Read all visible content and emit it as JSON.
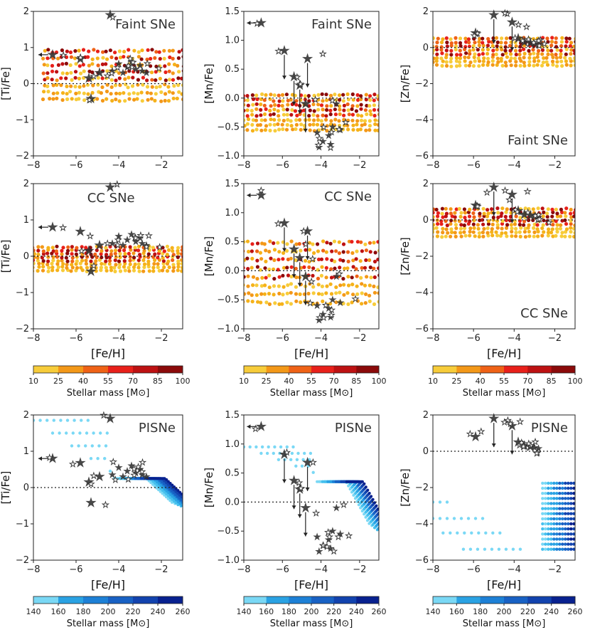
{
  "figure": {
    "rows": [
      "Faint SNe",
      "CC SNe",
      "PISNe"
    ]
  },
  "colors": {
    "warm": [
      "#f7cc3a",
      "#f5b21a",
      "#f39818",
      "#ef6216",
      "#e8201a",
      "#bd1112",
      "#8b0a0a"
    ],
    "cool": [
      "#7ad8f5",
      "#46c0ee",
      "#2aa2e3",
      "#1d80d6",
      "#1861c4",
      "#1243ae",
      "#08218f"
    ],
    "star": "#333333"
  },
  "colorbars": {
    "label": "Stellar mass [M⊙]",
    "warm_ticks": [
      "10",
      "25",
      "40",
      "55",
      "70",
      "85",
      "100"
    ],
    "cool_ticks": [
      "140",
      "160",
      "180",
      "200",
      "220",
      "240",
      "260"
    ]
  },
  "chart_data": [
    {
      "id": "r0c0",
      "type": "scatter",
      "model": "Faint SNe",
      "element": "Ti",
      "ylabel": "[Ti/Fe]",
      "xlabel": "",
      "xlim": [
        -8,
        -1
      ],
      "ylim": [
        -2,
        2
      ],
      "xticks": [
        "−8",
        "−6",
        "−4",
        "−2"
      ],
      "yticks": [
        "−2",
        "−1",
        "0",
        "1",
        "2"
      ],
      "title_pos": "top-right",
      "model_range": {
        "x": [
          -7.5,
          -1
        ],
        "y": [
          -0.45,
          0.9
        ]
      }
    },
    {
      "id": "r0c1",
      "type": "scatter",
      "model": "Faint SNe",
      "element": "Mn",
      "ylabel": "[Mn/Fe]",
      "xlabel": "",
      "xlim": [
        -8,
        -1
      ],
      "ylim": [
        -1,
        1.5
      ],
      "xticks": [
        "−8",
        "−6",
        "−4",
        "−2"
      ],
      "yticks": [
        "−1.0",
        "−0.5",
        "0.0",
        "0.5",
        "1.0",
        "1.5"
      ],
      "title_pos": "top-right",
      "model_range": {
        "x": [
          -8,
          -1
        ],
        "y": [
          -0.55,
          0.05
        ]
      }
    },
    {
      "id": "r0c2",
      "type": "scatter",
      "model": "Faint SNe",
      "element": "Zn",
      "ylabel": "[Zn/Fe]",
      "xlabel": "",
      "xlim": [
        -8,
        -1
      ],
      "ylim": [
        -6,
        2
      ],
      "xticks": [
        "−8",
        "−6",
        "−4",
        "−2"
      ],
      "yticks": [
        "−6",
        "−4",
        "−2",
        "0",
        "2"
      ],
      "title_pos": "bottom-right",
      "model_range": {
        "x": [
          -8,
          -1
        ],
        "y": [
          -1.0,
          0.5
        ]
      }
    },
    {
      "id": "r1c0",
      "type": "scatter",
      "model": "CC SNe",
      "element": "Ti",
      "ylabel": "[Ti/Fe]",
      "xlabel": "[Fe/H]",
      "xlim": [
        -8,
        -1
      ],
      "ylim": [
        -2,
        2
      ],
      "xticks": [
        "−8",
        "−6",
        "−4",
        "−2"
      ],
      "yticks": [
        "−2",
        "−1",
        "0",
        "1",
        "2"
      ],
      "title_pos": "top-left",
      "model_range": {
        "x": [
          -8,
          -1
        ],
        "y": [
          -0.4,
          0.25
        ]
      }
    },
    {
      "id": "r1c1",
      "type": "scatter",
      "model": "CC SNe",
      "element": "Mn",
      "ylabel": "[Mn/Fe]",
      "xlabel": "[Fe/H]",
      "xlim": [
        -8,
        -1
      ],
      "ylim": [
        -1,
        1.5
      ],
      "xticks": [
        "−8",
        "−6",
        "−4",
        "−2"
      ],
      "yticks": [
        "−1.0",
        "−0.5",
        "0.0",
        "0.5",
        "1.0",
        "1.5"
      ],
      "title_pos": "top-right",
      "model_range": {
        "x": [
          -8,
          -1
        ],
        "y": [
          -0.55,
          0.48
        ]
      }
    },
    {
      "id": "r1c2",
      "type": "scatter",
      "model": "CC SNe",
      "element": "Zn",
      "ylabel": "[Zn/Fe]",
      "xlabel": "[Fe/H]",
      "xlim": [
        -8,
        -1
      ],
      "ylim": [
        -6,
        2
      ],
      "xticks": [
        "−8",
        "−6",
        "−4",
        "−2"
      ],
      "yticks": [
        "−6",
        "−4",
        "−2",
        "0",
        "2"
      ],
      "title_pos": "bottom-right",
      "model_range": {
        "x": [
          -8,
          -1
        ],
        "y": [
          -0.9,
          0.6
        ]
      }
    },
    {
      "id": "r2c0",
      "type": "scatter",
      "model": "PISNe",
      "element": "Ti",
      "ylabel": "[Ti/Fe]",
      "xlabel": "[Fe/H]",
      "xlim": [
        -8,
        -1
      ],
      "ylim": [
        -2,
        2
      ],
      "xticks": [
        "−8",
        "−6",
        "−4",
        "−2"
      ],
      "yticks": [
        "−2",
        "−1",
        "0",
        "1",
        "2"
      ],
      "title_pos": "top-right",
      "model_range": {
        "x": [
          -8,
          -1
        ],
        "y": [
          -0.7,
          1.85
        ]
      }
    },
    {
      "id": "r2c1",
      "type": "scatter",
      "model": "PISNe",
      "element": "Mn",
      "ylabel": "[Mn/Fe]",
      "xlabel": "[Fe/H]",
      "xlim": [
        -8,
        -1
      ],
      "ylim": [
        -1,
        1.5
      ],
      "xticks": [
        "−8",
        "−6",
        "−4",
        "−2"
      ],
      "yticks": [
        "−1.0",
        "−0.5",
        "0.0",
        "0.5",
        "1.0",
        "1.5"
      ],
      "title_pos": "top-right",
      "model_range": {
        "x": [
          -8,
          -1
        ],
        "y": [
          -0.65,
          0.95
        ]
      }
    },
    {
      "id": "r2c2",
      "type": "scatter",
      "model": "PISNe",
      "element": "Zn",
      "ylabel": "[Zn/Fe]",
      "xlabel": "[Fe/H]",
      "xlim": [
        -8,
        -1
      ],
      "ylim": [
        -6,
        2
      ],
      "xticks": [
        "−8",
        "−6",
        "−4",
        "−2"
      ],
      "yticks": [
        "−6",
        "−4",
        "−2",
        "0",
        "2"
      ],
      "title_pos": "top-right",
      "model_range": {
        "x": [
          -8,
          -1
        ],
        "y": [
          -5.4,
          -1.4
        ]
      }
    }
  ],
  "observations": {
    "Ti": [
      [
        -4.4,
        1.9
      ],
      [
        -7.1,
        0.8,
        "ul"
      ],
      [
        -5.8,
        0.68
      ],
      [
        -5.4,
        0.15
      ],
      [
        -5.3,
        -0.42
      ],
      [
        -4.9,
        0.3
      ],
      [
        -4.3,
        0.35
      ],
      [
        -4.0,
        0.55
      ],
      [
        -3.8,
        0.3
      ],
      [
        -3.6,
        0.45
      ],
      [
        -3.4,
        0.6
      ],
      [
        -3.2,
        0.4
      ],
      [
        -3.0,
        0.5
      ],
      [
        -2.9,
        0.35
      ],
      [
        -2.7,
        0.3
      ]
    ],
    "Mn": [
      [
        -7.1,
        1.3,
        "ul"
      ],
      [
        -5.9,
        0.82,
        "down"
      ],
      [
        -5.4,
        0.37,
        "down"
      ],
      [
        -5.1,
        0.22,
        "down"
      ],
      [
        -4.7,
        0.68,
        "down"
      ],
      [
        -4.8,
        -0.1,
        "down"
      ],
      [
        -4.2,
        -0.6
      ],
      [
        -3.9,
        -0.75
      ],
      [
        -3.6,
        -0.65
      ],
      [
        -3.4,
        -0.5
      ],
      [
        -3.2,
        -0.1
      ],
      [
        -3.0,
        -0.55
      ],
      [
        -4.1,
        -0.85
      ],
      [
        -3.5,
        -0.8
      ]
    ],
    "Zn": [
      [
        -5.0,
        1.8,
        "down"
      ],
      [
        -5.9,
        0.8
      ],
      [
        -4.1,
        1.4,
        "down"
      ],
      [
        -3.8,
        0.5
      ],
      [
        -3.5,
        0.3
      ],
      [
        -3.2,
        0.25
      ],
      [
        -3.0,
        0.2
      ],
      [
        -2.8,
        0.15
      ]
    ]
  }
}
